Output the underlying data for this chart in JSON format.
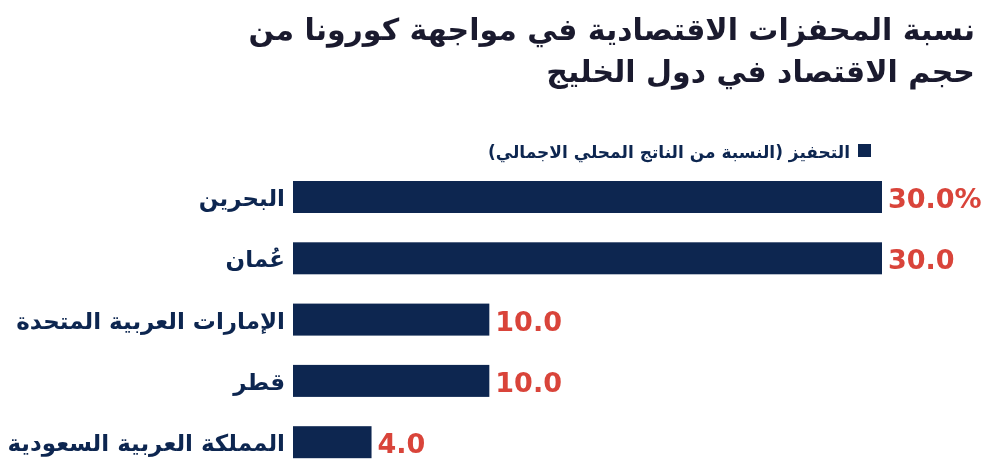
{
  "chart_data": {
    "type": "bar",
    "orientation": "horizontal",
    "title": "نسبة المحفزات الاقتصادية في مواجهة كورونا من حجم الاقتصاد في دول الخليج",
    "categories": [
      "البحرين",
      "عُمان",
      "الإمارات العربية المتحدة",
      "قطر",
      "المملكة العربية السعودية"
    ],
    "series": [
      {
        "name": "التحفيز (النسبة من الناتج المحلي الاجمالي)",
        "color": "#0d2650",
        "values": [
          30.0,
          30.0,
          10.0,
          10.0,
          4.0
        ],
        "value_labels": [
          "30.0%",
          "30.0",
          "10.0",
          "10.0",
          "4.0"
        ]
      }
    ],
    "legend": "top",
    "grid": false
  }
}
